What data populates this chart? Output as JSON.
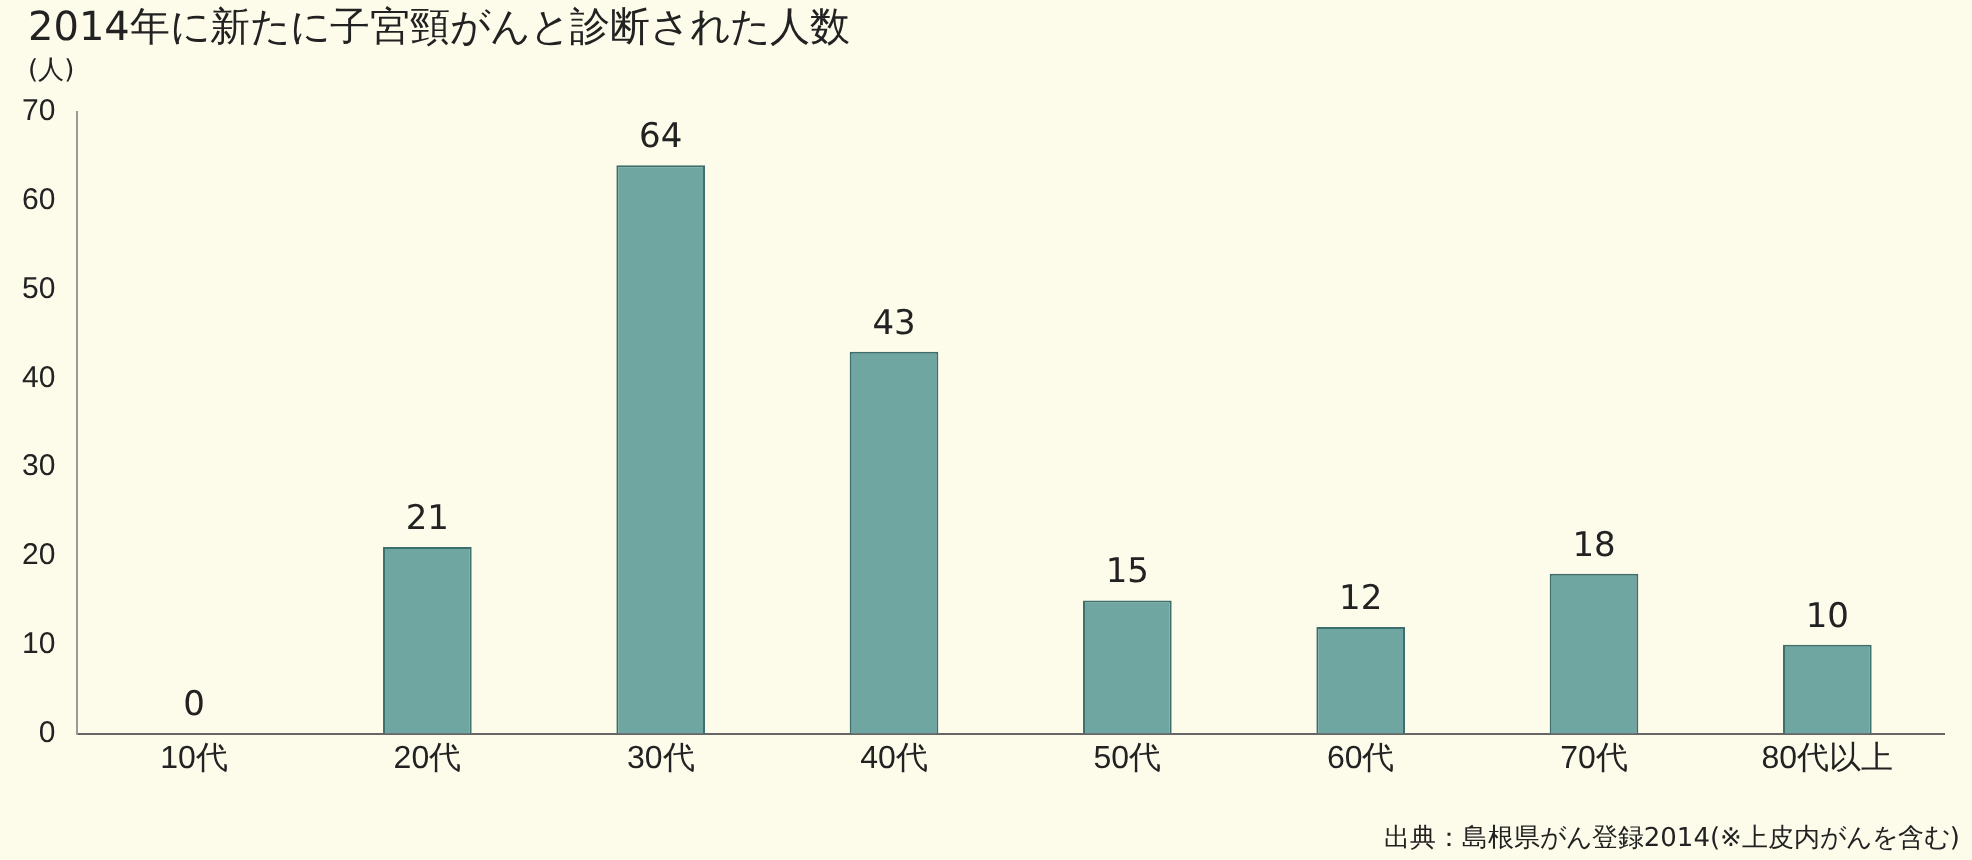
{
  "chart_data": {
    "type": "bar",
    "title": "2014年に新たに子宮頸がんと診断された人数",
    "ylabel": "(人)",
    "categories": [
      "10代",
      "20代",
      "30代",
      "40代",
      "50代",
      "60代",
      "70代",
      "80代以上"
    ],
    "values": [
      0,
      21,
      64,
      43,
      15,
      12,
      18,
      10
    ],
    "color": "#6fa6a2",
    "ylim": [
      0,
      70
    ],
    "yticks": [
      0,
      10,
      20,
      30,
      40,
      50,
      60,
      70
    ],
    "grid": false,
    "data_labels": true,
    "annotations": [
      "出典：島根県がん登録2014(※上皮内がんを含む)"
    ]
  }
}
